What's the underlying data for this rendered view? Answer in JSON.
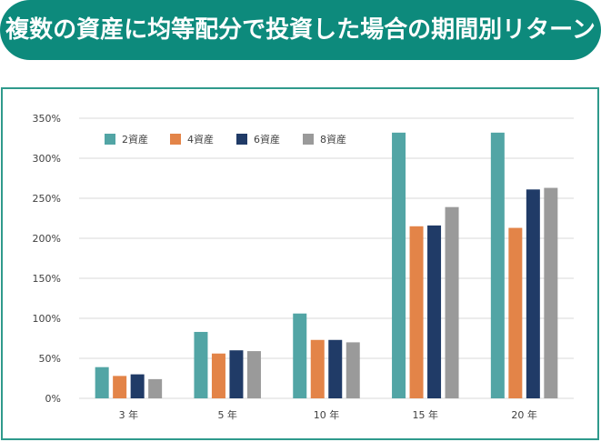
{
  "header": {
    "title": "複数の資産に均等配分で投資した場合の期間別リターン"
  },
  "colors": {
    "banner": "#0d8a7c",
    "frame": "#2f9a8c",
    "grid": "#d9d9d9",
    "axis_text": "#404040"
  },
  "chart_data": {
    "type": "bar",
    "title": "複数の資産に均等配分で投資した場合の期間別リターン",
    "categories": [
      "3 年",
      "5 年",
      "10 年",
      "15 年",
      "20 年"
    ],
    "series": [
      {
        "name": "2資産",
        "color": "#52a5a5",
        "values": [
          39,
          83,
          106,
          332,
          332
        ]
      },
      {
        "name": "4資産",
        "color": "#e38448",
        "values": [
          28,
          56,
          73,
          215,
          213
        ]
      },
      {
        "name": "6資産",
        "color": "#203b67",
        "values": [
          30,
          60,
          73,
          216,
          261
        ]
      },
      {
        "name": "8資産",
        "color": "#9a9a9a",
        "values": [
          24,
          59,
          70,
          239,
          263
        ]
      }
    ],
    "yticks": [
      "0%",
      "50%",
      "100%",
      "150%",
      "200%",
      "250%",
      "300%",
      "350%"
    ],
    "ylim": [
      0,
      350
    ],
    "xlabel": "",
    "ylabel": "",
    "legend": "top-left",
    "grid": true
  }
}
